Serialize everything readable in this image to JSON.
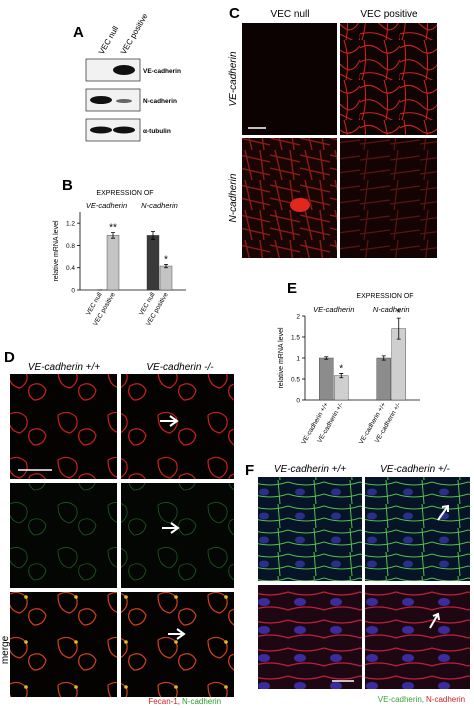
{
  "panel_a": {
    "label": "A",
    "lanes": [
      "VEC null",
      "VEC positive"
    ],
    "bands": [
      "VE-cadherin",
      "N-cadherin",
      "α-tubulin"
    ]
  },
  "panel_c": {
    "label": "C",
    "columns": [
      "VEC null",
      "VEC positive"
    ],
    "rows": [
      "VE-cadherin",
      "N-cadherin"
    ]
  },
  "panel_d": {
    "label": "D",
    "columns": [
      "VE-cadherin +/+",
      "VE-cadherin -/-"
    ],
    "row_label": "merge",
    "stain_red": "Fecan-1,",
    "stain_green": "N-cadherin"
  },
  "panel_f": {
    "label": "F",
    "columns": [
      "VE-cadherin +/+",
      "VE-cadherin +/-"
    ],
    "stain_green": "VE-cadherin,",
    "stain_red": "N-cadherin"
  },
  "chart_data": [
    {
      "type": "bar",
      "label": "B",
      "title": "EXPRESSION OF",
      "y_label": "relative mRNA level",
      "categories": [
        "VE-cadherin",
        "N-cadherin"
      ],
      "series": [
        {
          "name": "VEC null",
          "color": "#3a3a3a",
          "values": [
            0,
            0.98
          ],
          "errors": [
            0,
            0.07
          ]
        },
        {
          "name": "VEC positive",
          "color": "#c4c4c4",
          "values": [
            0.98,
            0.43
          ],
          "errors": [
            0.05,
            0.03
          ],
          "significance": [
            "**",
            "*"
          ]
        }
      ],
      "ylim": [
        0,
        1.4
      ],
      "yticks": [
        0,
        0.4,
        0.8,
        1.2
      ]
    },
    {
      "type": "bar",
      "label": "E",
      "title": "EXPRESSION OF",
      "y_label": "relative mRNA level",
      "categories": [
        "VE-cadherin",
        "N-cadherin"
      ],
      "series": [
        {
          "name": "VE-cadherin +/+",
          "color": "#8c8c8c",
          "values": [
            1.0,
            1.0
          ],
          "errors": [
            0.03,
            0.05
          ]
        },
        {
          "name": "VE-cadherin +/-",
          "color": "#cfcfcf",
          "values": [
            0.58,
            1.7
          ],
          "errors": [
            0.05,
            0.25
          ],
          "significance": [
            "*",
            "*"
          ]
        }
      ],
      "ylim": [
        0,
        2
      ],
      "yticks": [
        0,
        0.5,
        1,
        1.5,
        2
      ]
    }
  ]
}
